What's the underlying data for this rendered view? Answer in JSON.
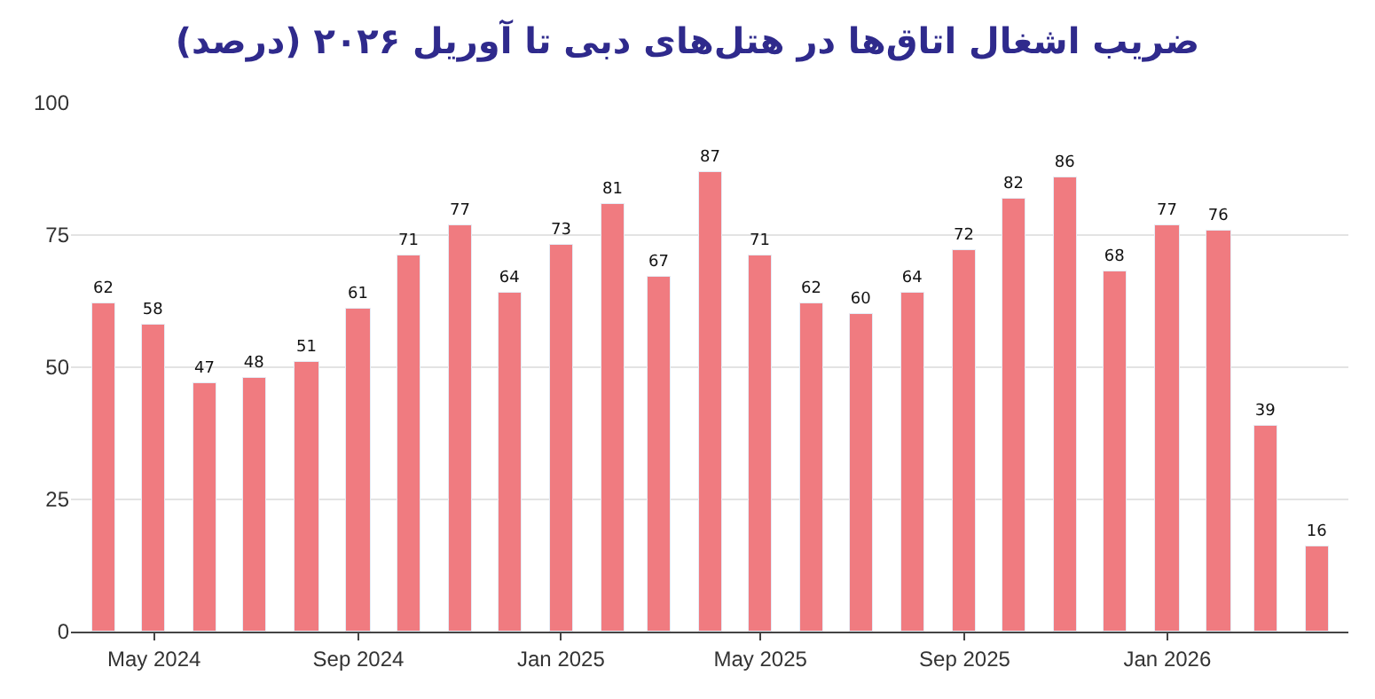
{
  "chart_data": {
    "type": "bar",
    "title": "ضریب اشغال اتاق‌ها در هتل‌های دبی تا آوریل ۲۰۲۶ (درصد)",
    "x": [
      "2024-04",
      "2024-05",
      "2024-06",
      "2024-07",
      "2024-08",
      "2024-09",
      "2024-10",
      "2024-11",
      "2024-12",
      "2025-01",
      "2025-02",
      "2025-03",
      "2025-04",
      "2025-05",
      "2025-06",
      "2025-07",
      "2025-08",
      "2025-09",
      "2025-10",
      "2025-11",
      "2025-12",
      "2026-01",
      "2026-02",
      "2026-03",
      "2026-04"
    ],
    "values": [
      62,
      58,
      47,
      48,
      51,
      61,
      71,
      77,
      64,
      73,
      81,
      67,
      87,
      71,
      62,
      60,
      64,
      72,
      82,
      86,
      68,
      77,
      76,
      39,
      16
    ],
    "color": "#f07b80",
    "data_labels": true,
    "xlim": [
      "2024-03-12",
      "2026-04-20"
    ],
    "xticks": [
      {
        "value": "2024-05",
        "label": "May 2024"
      },
      {
        "value": "2024-09",
        "label": "Sep 2024"
      },
      {
        "value": "2025-01",
        "label": "Jan 2025"
      },
      {
        "value": "2025-05",
        "label": "May 2025"
      },
      {
        "value": "2025-09",
        "label": "Sep 2025"
      },
      {
        "value": "2026-01",
        "label": "Jan 2026"
      }
    ],
    "ylim": [
      0,
      100
    ],
    "yticks": [
      0,
      25,
      50,
      75,
      100
    ],
    "grid": "y",
    "legend": false
  }
}
